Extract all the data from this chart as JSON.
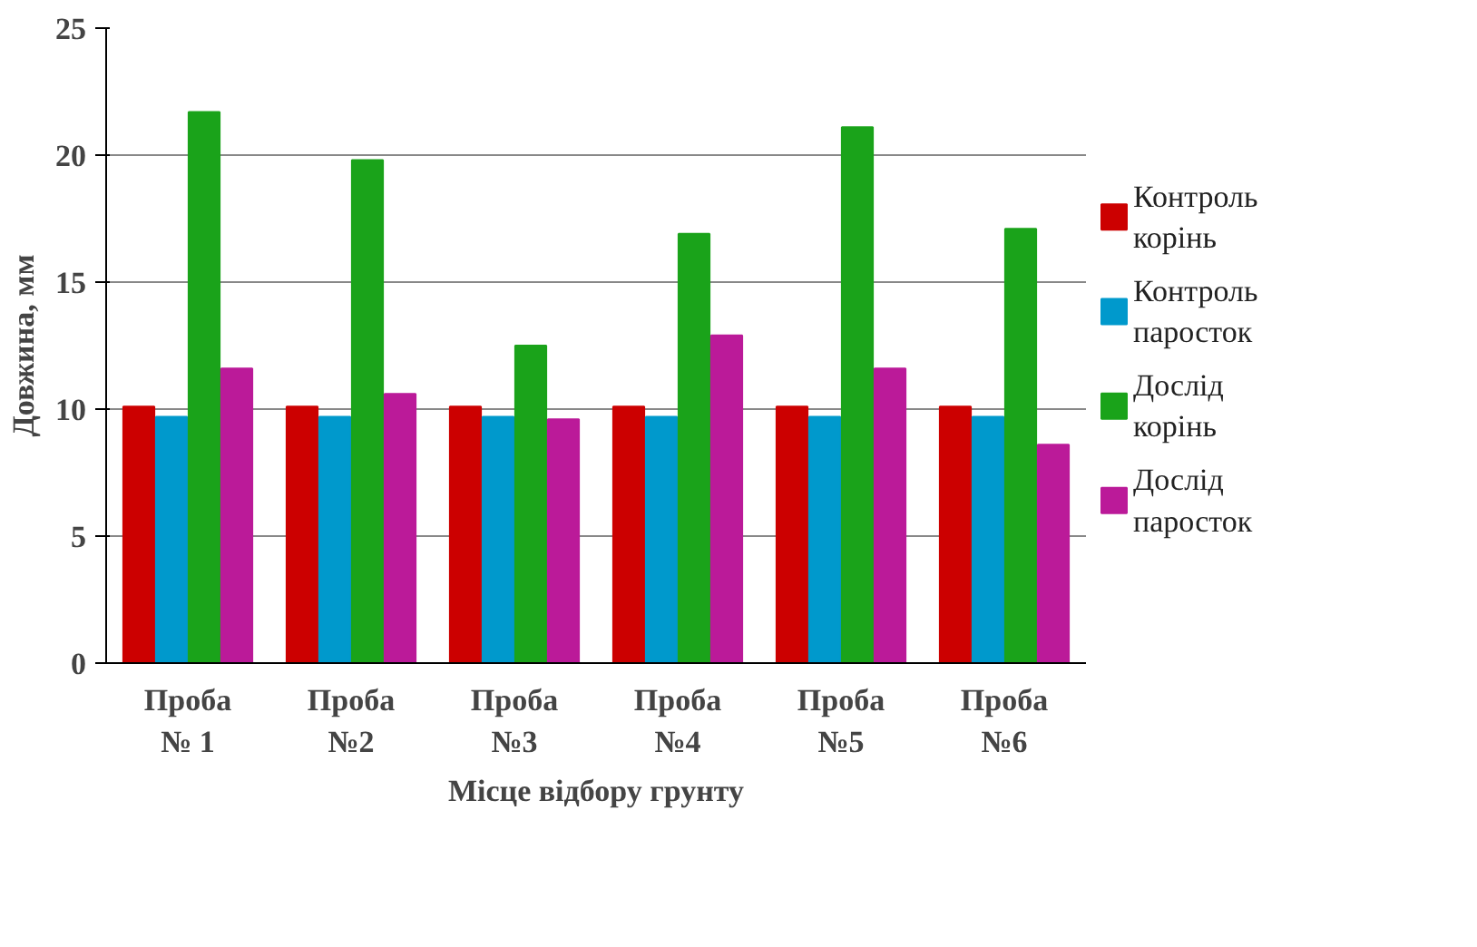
{
  "chart_data": {
    "type": "bar",
    "xlabel": "Місце відбору грунту",
    "ylabel": "Довжина, мм",
    "categories": [
      "Проба № 1",
      "Проба №2",
      "Проба №3",
      "Проба №4",
      "Проба №5",
      "Проба №6"
    ],
    "series": [
      {
        "name": "Контроль корінь",
        "color": "#cc0000",
        "values": [
          10.1,
          10.1,
          10.1,
          10.1,
          10.1,
          10.1
        ]
      },
      {
        "name": "Контроль паросток",
        "color": "#0099cc",
        "values": [
          9.7,
          9.7,
          9.7,
          9.7,
          9.7,
          9.7
        ]
      },
      {
        "name": "Дослід корінь",
        "color": "#1aa31a",
        "values": [
          21.7,
          19.8,
          12.5,
          16.9,
          21.1,
          17.1
        ]
      },
      {
        "name": "Дослід паросток",
        "color": "#bb1a99",
        "values": [
          11.6,
          10.6,
          9.6,
          12.9,
          11.6,
          8.6
        ]
      }
    ],
    "ylim": [
      0,
      25
    ],
    "yticks": [
      0,
      5,
      10,
      15,
      20,
      25
    ],
    "grid": "y",
    "legend": "right"
  }
}
